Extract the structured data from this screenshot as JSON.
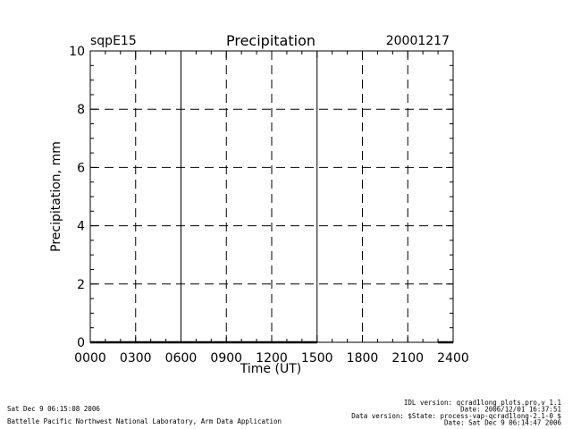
{
  "header": {
    "site": "sqpE15",
    "date": "20001217"
  },
  "chart_data": {
    "type": "line",
    "title": "Precipitation",
    "xlabel": "Time (UT)",
    "ylabel": "Precipitation, mm",
    "xlim": [
      0,
      2400
    ],
    "ylim": [
      0,
      10
    ],
    "x_ticks": [
      {
        "value": 0,
        "label": "0000"
      },
      {
        "value": 300,
        "label": "0300"
      },
      {
        "value": 600,
        "label": "0600"
      },
      {
        "value": 900,
        "label": "0900"
      },
      {
        "value": 1200,
        "label": "1200"
      },
      {
        "value": 1500,
        "label": "1500"
      },
      {
        "value": 1800,
        "label": "1800"
      },
      {
        "value": 2100,
        "label": "2100"
      },
      {
        "value": 2400,
        "label": "2400"
      }
    ],
    "y_ticks": [
      0,
      2,
      4,
      6,
      8,
      10
    ],
    "grid": true,
    "series": [
      {
        "segments": [
          {
            "x": [
              0,
              600,
              1500
            ],
            "y": [
              0,
              0,
              0
            ]
          },
          {
            "x": [
              2300,
              2400
            ],
            "y": [
              0,
              0
            ]
          }
        ]
      }
    ],
    "solid_verticals": [
      600,
      1500
    ]
  },
  "footer": {
    "left_line1": "Sat Dec  9 06:15:08 2006",
    "left_line2": "Battelle Pacific Northwest National Laboratory, Arm Data Application",
    "right_lines": [
      "IDL version: qcrad1long_plots.pro,v 1.1",
      "Date: 2006/12/01 16:37:51",
      "Data version: $State: process-vap-qcrad1long-2.1-0 $",
      "Date: Sat Dec  9 06:14:47 2006"
    ]
  }
}
